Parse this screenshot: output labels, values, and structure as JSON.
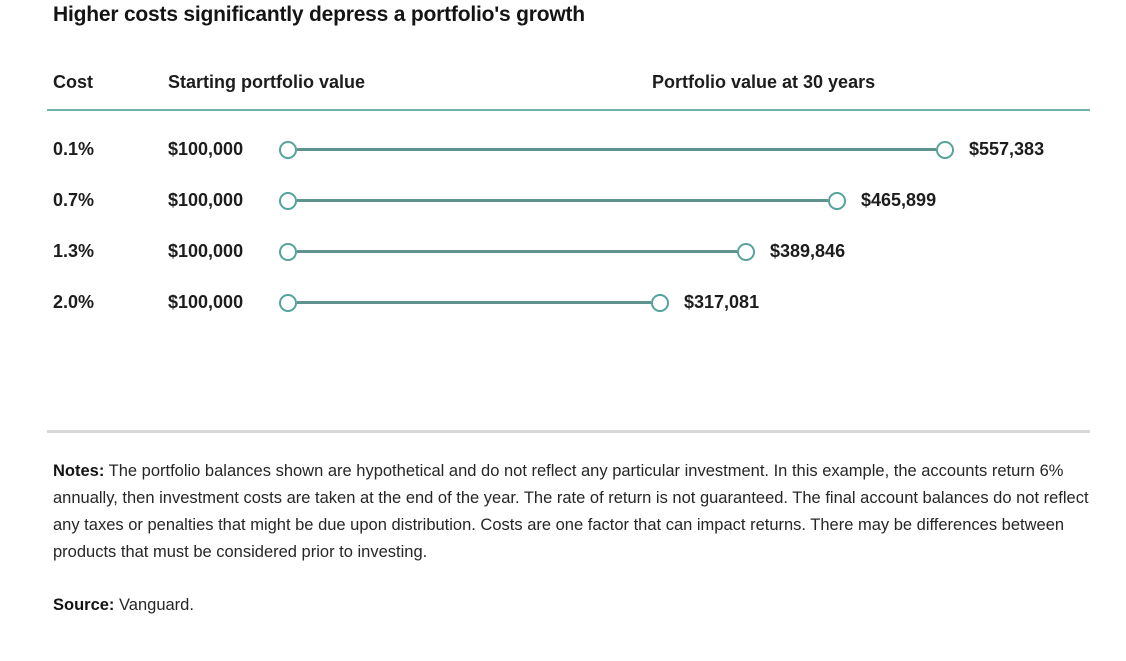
{
  "page": {
    "title": "Higher costs significantly depress a portfolio's growth"
  },
  "chart_data": {
    "type": "bar",
    "title": "Higher costs significantly depress a portfolio's growth",
    "orientation": "horizontal-dumbbell",
    "columns": [
      "Cost",
      "Starting portfolio value",
      "Portfolio value at 30 years"
    ],
    "rows": [
      {
        "cost": "0.1%",
        "start_label": "$100,000",
        "start_value": 100000,
        "end_label": "$557,383",
        "end_value": 557383
      },
      {
        "cost": "0.7%",
        "start_label": "$100,000",
        "start_value": 100000,
        "end_label": "$465,899",
        "end_value": 465899
      },
      {
        "cost": "1.3%",
        "start_label": "$100,000",
        "start_value": 100000,
        "end_label": "$389,846",
        "end_value": 389846
      },
      {
        "cost": "2.0%",
        "start_label": "$100,000",
        "start_value": 100000,
        "end_label": "$317,081",
        "end_value": 317081
      }
    ],
    "value_range": [
      100000,
      557383
    ],
    "colors": {
      "marker_stroke": "#55a39b",
      "connector_line": "#5f938d",
      "header_rule": "#73b2ab",
      "divider": "#d8d8d8",
      "text": "#1d1d1d"
    }
  },
  "footer": {
    "notes_label": "Notes:",
    "notes_text": " The portfolio balances shown are hypothetical and do not reflect any particular investment. In this example, the accounts return 6% annually, then investment costs are taken at the end of the year. The rate of return is not guaranteed. The final account balances do not reflect any taxes or penalties that might be due upon distribution. Costs are one factor that can impact returns. There may be differences between products that must be considered prior to investing.",
    "source_label": "Source:",
    "source_text": " Vanguard."
  }
}
